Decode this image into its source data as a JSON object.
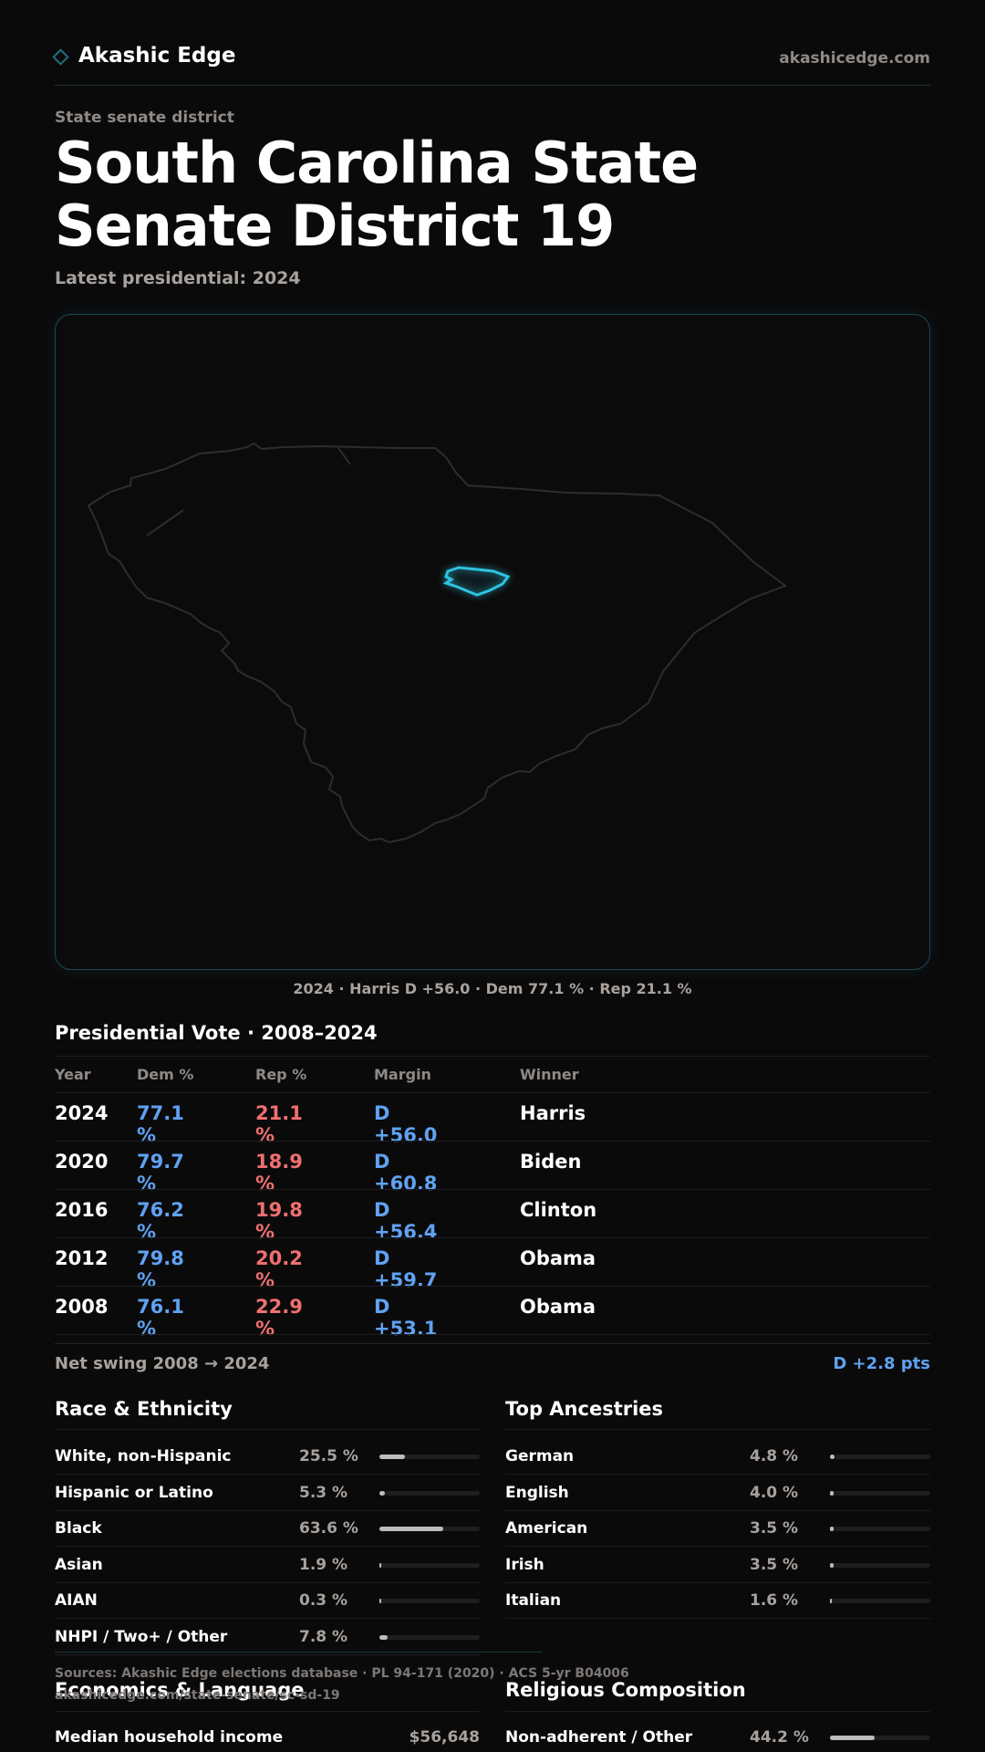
{
  "header": {
    "brand": "Akashic Edge",
    "url": "akashicedge.com"
  },
  "page": {
    "eyebrow": "State senate district",
    "title": "South Carolina State Senate District 19",
    "latest": "Latest presidential: 2024"
  },
  "map": {
    "caption": "2024 · Harris D +56.0 · Dem 77.1 % · Rep 21.1 %",
    "highlight_color": "#2ec3e0"
  },
  "presidential": {
    "title": "Presidential Vote · 2008–2024",
    "headers": [
      "Year",
      "Dem %",
      "Rep %",
      "Margin",
      "Winner"
    ],
    "rows": [
      {
        "year": "2024",
        "dem": "77.1 %",
        "rep": "21.1 %",
        "margin": "D +56.0",
        "winner": "Harris"
      },
      {
        "year": "2020",
        "dem": "79.7 %",
        "rep": "18.9 %",
        "margin": "D +60.8",
        "winner": "Biden"
      },
      {
        "year": "2016",
        "dem": "76.2 %",
        "rep": "19.8 %",
        "margin": "D +56.4",
        "winner": "Clinton"
      },
      {
        "year": "2012",
        "dem": "79.8 %",
        "rep": "20.2 %",
        "margin": "D +59.7",
        "winner": "Obama"
      },
      {
        "year": "2008",
        "dem": "76.1 %",
        "rep": "22.9 %",
        "margin": "D +53.1",
        "winner": "Obama"
      }
    ],
    "net_swing_label": "Net swing 2008 → 2024",
    "net_swing_value": "D +2.8 pts"
  },
  "race": {
    "title": "Race & Ethnicity",
    "items": [
      {
        "label": "White, non-Hispanic",
        "pct": "25.5 %",
        "value": 25.5
      },
      {
        "label": "Hispanic or Latino",
        "pct": "5.3 %",
        "value": 5.3
      },
      {
        "label": "Black",
        "pct": "63.6 %",
        "value": 63.6
      },
      {
        "label": "Asian",
        "pct": "1.9 %",
        "value": 1.9
      },
      {
        "label": "AIAN",
        "pct": "0.3 %",
        "value": 0.3
      },
      {
        "label": "NHPI / Two+ / Other",
        "pct": "7.8 %",
        "value": 7.8
      }
    ]
  },
  "ancestry": {
    "title": "Top Ancestries",
    "items": [
      {
        "label": "German",
        "pct": "4.8 %",
        "value": 4.8
      },
      {
        "label": "English",
        "pct": "4.0 %",
        "value": 4.0
      },
      {
        "label": "American",
        "pct": "3.5 %",
        "value": 3.5
      },
      {
        "label": "Irish",
        "pct": "3.5 %",
        "value": 3.5
      },
      {
        "label": "Italian",
        "pct": "1.6 %",
        "value": 1.6
      }
    ]
  },
  "economics": {
    "title": "Economics & Language",
    "items": [
      {
        "label": "Median household income",
        "value": "$56,648"
      }
    ]
  },
  "religion": {
    "title": "Religious Composition",
    "items": [
      {
        "label": "Non-adherent / Other",
        "pct": "44.2 %",
        "value": 44.2
      }
    ]
  },
  "footer": {
    "sources": "Sources: Akashic Edge elections database · PL 94-171 (2020) · ACS 5-yr B04006",
    "url": "akashicedge.com/state-senate/sc-sd-19"
  }
}
